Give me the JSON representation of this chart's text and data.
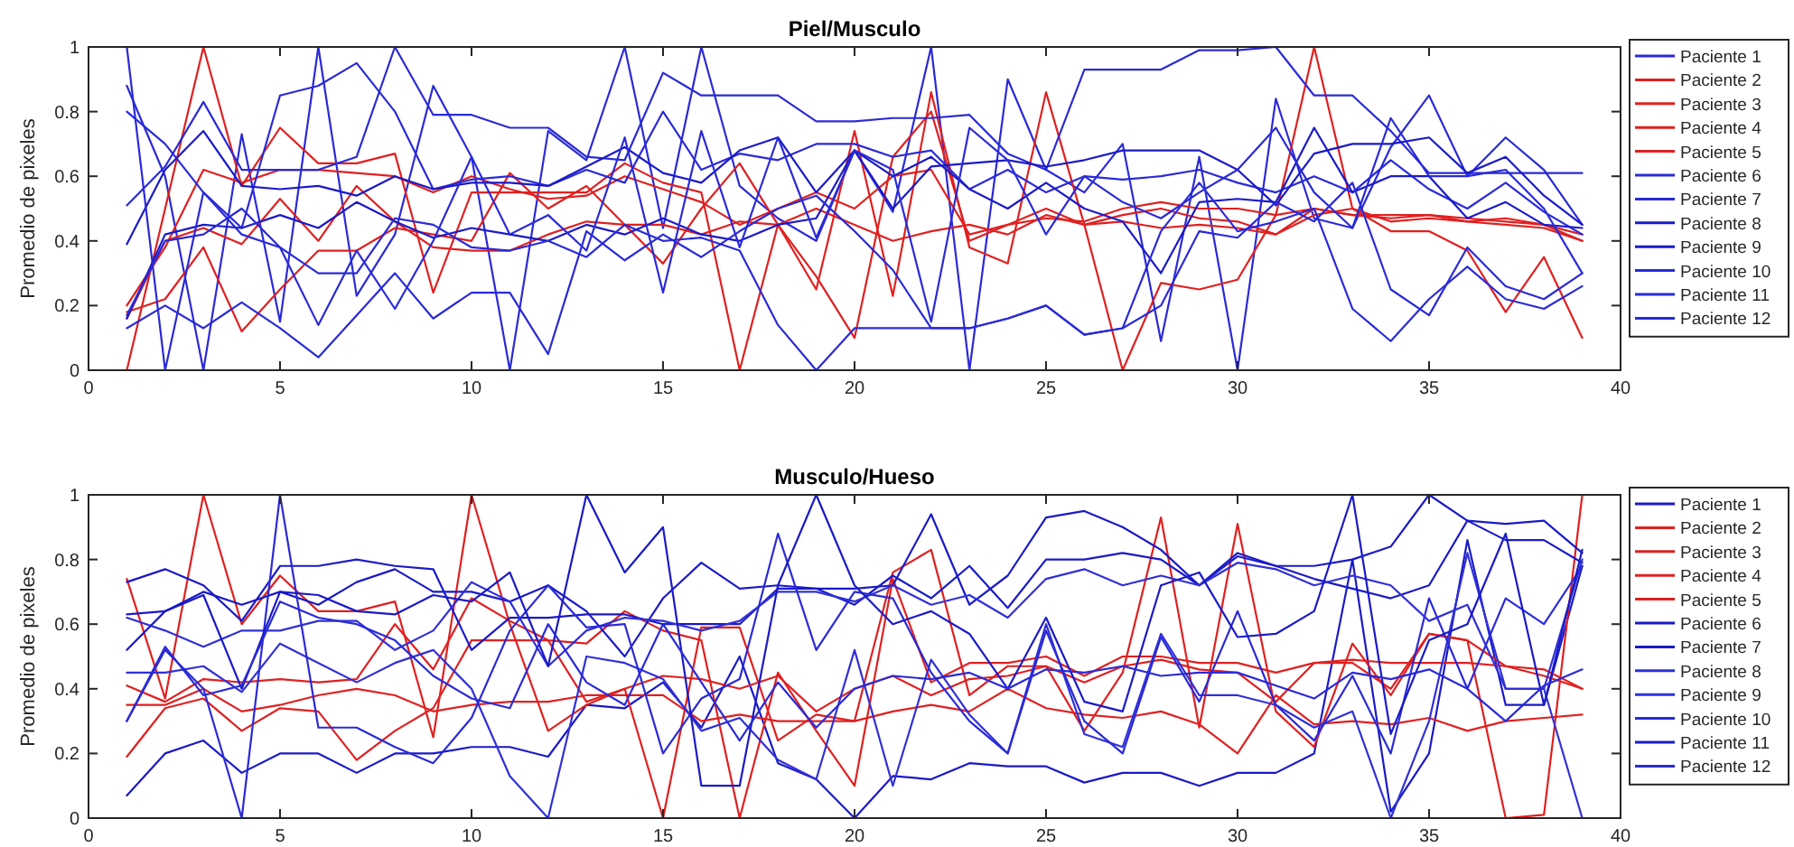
{
  "chart_data": [
    {
      "type": "line",
      "title": "Piel/Musculo",
      "ylabel": "Promedio de pixeles",
      "x": [
        1,
        2,
        3,
        4,
        5,
        6,
        7,
        8,
        9,
        10,
        11,
        12,
        13,
        14,
        15,
        16,
        17,
        18,
        19,
        20,
        21,
        22,
        23,
        24,
        25,
        26,
        27,
        28,
        29,
        30,
        31,
        32,
        33,
        34,
        35,
        36,
        37,
        38,
        39
      ],
      "xlim": [
        0,
        40
      ],
      "xticks": [
        0,
        5,
        10,
        15,
        20,
        25,
        30,
        35,
        40
      ],
      "ylim": [
        0,
        1
      ],
      "yticks": [
        0,
        0.2,
        0.4,
        0.6,
        0.8,
        1
      ],
      "legend": "right",
      "grid": false,
      "series": [
        {
          "name": "Paciente 1",
          "color": "#2a2ad8",
          "values": [
            0.88,
            0.6,
            0.0,
            0.73,
            0.15,
            1.0,
            0.23,
            0.42,
            0.88,
            0.66,
            0.0,
            0.74,
            0.65,
            1.0,
            0.44,
            1.0,
            0.57,
            0.47,
            0.4,
            0.68,
            0.49,
            1.0,
            0.0,
            0.9,
            0.62,
            0.55,
            0.7,
            0.09,
            0.66,
            0.0,
            0.84,
            0.47,
            0.44,
            0.69,
            0.85,
            0.6,
            0.72,
            0.62,
            0.45
          ]
        },
        {
          "name": "Paciente 2",
          "color": "#e02020",
          "values": [
            0.0,
            0.5,
            1.0,
            0.57,
            0.75,
            0.64,
            0.64,
            0.67,
            0.24,
            0.55,
            0.55,
            0.55,
            0.55,
            0.64,
            0.58,
            0.55,
            0.0,
            0.45,
            0.25,
            0.74,
            0.23,
            0.86,
            0.38,
            0.33,
            0.86,
            0.45,
            0.0,
            0.27,
            0.25,
            0.28,
            0.48,
            1.0,
            0.5,
            0.43,
            0.43,
            0.37,
            0.18,
            0.35,
            0.1
          ]
        },
        {
          "name": "Paciente 3",
          "color": "#e02020",
          "values": [
            0.18,
            0.22,
            0.38,
            0.12,
            0.25,
            0.37,
            0.37,
            0.44,
            0.42,
            0.4,
            0.61,
            0.5,
            0.57,
            0.45,
            0.33,
            0.5,
            0.64,
            0.45,
            0.29,
            0.1,
            0.66,
            0.8,
            0.4,
            0.45,
            0.5,
            0.45,
            0.48,
            0.5,
            0.47,
            0.46,
            0.42,
            0.48,
            0.5,
            0.46,
            0.47,
            0.46,
            0.45,
            0.44,
            0.4
          ]
        },
        {
          "name": "Paciente 4",
          "color": "#e02020",
          "values": [
            0.2,
            0.38,
            0.62,
            0.58,
            0.62,
            0.62,
            0.61,
            0.6,
            0.55,
            0.6,
            0.56,
            0.53,
            0.54,
            0.6,
            0.56,
            0.52,
            0.45,
            0.5,
            0.55,
            0.5,
            0.6,
            0.62,
            0.42,
            0.45,
            0.47,
            0.46,
            0.5,
            0.52,
            0.5,
            0.5,
            0.48,
            0.5,
            0.48,
            0.47,
            0.48,
            0.46,
            0.47,
            0.45,
            0.42
          ]
        },
        {
          "name": "Paciente 5",
          "color": "#e02020",
          "values": [
            0.16,
            0.4,
            0.44,
            0.39,
            0.53,
            0.4,
            0.57,
            0.46,
            0.38,
            0.37,
            0.37,
            0.42,
            0.46,
            0.45,
            0.45,
            0.42,
            0.46,
            0.45,
            0.5,
            0.45,
            0.4,
            0.43,
            0.45,
            0.42,
            0.48,
            0.45,
            0.46,
            0.44,
            0.45,
            0.44,
            0.42,
            0.5,
            0.48,
            0.48,
            0.48,
            0.47,
            0.46,
            0.45,
            0.4
          ]
        },
        {
          "name": "Paciente 6",
          "color": "#2a2ad8",
          "values": [
            0.51,
            0.63,
            0.83,
            0.62,
            0.62,
            0.62,
            0.66,
            1.0,
            0.79,
            0.79,
            0.75,
            0.75,
            0.66,
            0.65,
            0.92,
            0.85,
            0.85,
            0.85,
            0.77,
            0.77,
            0.78,
            0.78,
            0.79,
            0.67,
            0.62,
            0.93,
            0.93,
            0.93,
            0.99,
            0.99,
            1.0,
            0.85,
            0.85,
            0.74,
            0.61,
            0.61,
            0.61,
            0.61,
            0.61
          ]
        },
        {
          "name": "Paciente 7",
          "color": "#2a2ad8",
          "values": [
            0.8,
            0.7,
            0.55,
            0.44,
            0.85,
            0.88,
            0.95,
            0.8,
            0.56,
            0.59,
            0.6,
            0.57,
            0.62,
            0.58,
            0.8,
            0.62,
            0.67,
            0.65,
            0.7,
            0.7,
            0.66,
            0.68,
            0.56,
            0.62,
            0.55,
            0.6,
            0.59,
            0.6,
            0.62,
            0.58,
            0.55,
            0.6,
            0.55,
            0.65,
            0.56,
            0.5,
            0.58,
            0.49,
            0.42
          ]
        },
        {
          "name": "Paciente 8",
          "color": "#1a1ac8",
          "values": [
            0.39,
            0.62,
            0.74,
            0.57,
            0.56,
            0.57,
            0.54,
            0.6,
            0.56,
            0.58,
            0.58,
            0.57,
            0.63,
            0.69,
            0.61,
            0.58,
            0.68,
            0.72,
            0.55,
            0.68,
            0.5,
            0.63,
            0.64,
            0.65,
            0.63,
            0.65,
            0.68,
            0.68,
            0.68,
            0.62,
            0.51,
            0.67,
            0.7,
            0.7,
            0.72,
            0.61,
            0.66,
            0.54,
            0.45
          ]
        },
        {
          "name": "Paciente 9",
          "color": "#1a1ac8",
          "values": [
            0.16,
            0.42,
            0.45,
            0.44,
            0.48,
            0.44,
            0.52,
            0.46,
            0.41,
            0.44,
            0.42,
            0.4,
            0.45,
            0.42,
            0.47,
            0.42,
            0.4,
            0.45,
            0.47,
            0.68,
            0.6,
            0.66,
            0.56,
            0.5,
            0.58,
            0.5,
            0.46,
            0.3,
            0.52,
            0.53,
            0.52,
            0.75,
            0.55,
            0.6,
            0.6,
            0.47,
            0.52,
            0.45,
            0.44
          ]
        },
        {
          "name": "Paciente 10",
          "color": "#2a2ad8",
          "values": [
            0.13,
            0.2,
            0.13,
            0.21,
            0.13,
            0.04,
            0.17,
            0.3,
            0.16,
            0.24,
            0.24,
            0.05,
            0.43,
            0.34,
            0.42,
            0.35,
            0.43,
            0.5,
            0.54,
            0.43,
            0.31,
            0.13,
            0.13,
            0.16,
            0.2,
            0.11,
            0.13,
            0.2,
            0.43,
            0.41,
            0.52,
            0.46,
            0.58,
            0.25,
            0.17,
            0.38,
            0.26,
            0.22,
            0.3
          ]
        },
        {
          "name": "Paciente 11",
          "color": "#2a2ad8",
          "values": [
            1.0,
            0.0,
            0.55,
            0.42,
            0.38,
            0.14,
            0.37,
            0.19,
            0.4,
            0.66,
            0.42,
            0.48,
            0.37,
            0.72,
            0.24,
            0.74,
            0.38,
            0.72,
            0.41,
            0.68,
            0.62,
            0.15,
            0.75,
            0.65,
            0.42,
            0.6,
            0.52,
            0.47,
            0.55,
            0.62,
            0.75,
            0.55,
            0.44,
            0.78,
            0.6,
            0.6,
            0.62,
            0.5,
            0.3
          ]
        },
        {
          "name": "Paciente 12",
          "color": "#2a2ad8",
          "values": [
            0.17,
            0.4,
            0.42,
            0.5,
            0.38,
            0.3,
            0.3,
            0.47,
            0.45,
            0.38,
            0.37,
            0.4,
            0.35,
            0.45,
            0.4,
            0.41,
            0.37,
            0.14,
            0.0,
            0.13,
            0.13,
            0.13,
            0.13,
            0.16,
            0.2,
            0.11,
            0.13,
            0.43,
            0.58,
            0.43,
            0.46,
            0.5,
            0.19,
            0.09,
            0.22,
            0.32,
            0.22,
            0.19,
            0.26
          ]
        }
      ]
    },
    {
      "type": "line",
      "title": "Musculo/Hueso",
      "ylabel": "Promedio de pixeles",
      "x": [
        1,
        2,
        3,
        4,
        5,
        6,
        7,
        8,
        9,
        10,
        11,
        12,
        13,
        14,
        15,
        16,
        17,
        18,
        19,
        20,
        21,
        22,
        23,
        24,
        25,
        26,
        27,
        28,
        29,
        30,
        31,
        32,
        33,
        34,
        35,
        36,
        37,
        38,
        39
      ],
      "xlim": [
        0,
        40
      ],
      "xticks": [
        0,
        5,
        10,
        15,
        20,
        25,
        30,
        35,
        40
      ],
      "ylim": [
        0,
        1
      ],
      "yticks": [
        0,
        0.2,
        0.4,
        0.6,
        0.8,
        1
      ],
      "legend": "right",
      "grid": false,
      "series": [
        {
          "name": "Paciente 1",
          "color": "#1a1ac8",
          "values": [
            0.07,
            0.2,
            0.24,
            0.14,
            0.2,
            0.2,
            0.14,
            0.2,
            0.2,
            0.22,
            0.22,
            0.19,
            0.35,
            0.34,
            0.42,
            0.28,
            0.5,
            0.17,
            0.12,
            0.0,
            0.13,
            0.12,
            0.17,
            0.16,
            0.16,
            0.11,
            0.14,
            0.14,
            0.1,
            0.14,
            0.14,
            0.2,
            0.8,
            0.02,
            0.2,
            0.86,
            0.35,
            0.35,
            0.78
          ]
        },
        {
          "name": "Paciente 2",
          "color": "#e02020",
          "values": [
            0.74,
            0.37,
            1.0,
            0.6,
            0.75,
            0.64,
            0.64,
            0.67,
            0.25,
            1.0,
            0.6,
            0.27,
            0.35,
            0.4,
            0.0,
            0.59,
            0.59,
            0.24,
            0.32,
            0.3,
            0.76,
            0.83,
            0.38,
            0.47,
            0.47,
            0.27,
            0.45,
            0.93,
            0.28,
            0.91,
            0.33,
            0.22,
            0.54,
            0.38,
            0.57,
            0.55,
            0.0,
            0.01,
            1.0
          ]
        },
        {
          "name": "Paciente 3",
          "color": "#e02020",
          "values": [
            0.41,
            0.36,
            0.43,
            0.42,
            0.43,
            0.42,
            0.43,
            0.6,
            0.46,
            0.68,
            0.61,
            0.55,
            0.54,
            0.64,
            0.58,
            0.55,
            0.0,
            0.45,
            0.27,
            0.1,
            0.74,
            0.42,
            0.48,
            0.48,
            0.5,
            0.44,
            0.5,
            0.5,
            0.48,
            0.48,
            0.45,
            0.48,
            0.49,
            0.48,
            0.48,
            0.48,
            0.47,
            0.46,
            0.4
          ]
        },
        {
          "name": "Paciente 4",
          "color": "#e02020",
          "values": [
            0.19,
            0.34,
            0.37,
            0.27,
            0.34,
            0.33,
            0.18,
            0.27,
            0.34,
            0.55,
            0.55,
            0.55,
            0.36,
            0.4,
            0.44,
            0.43,
            0.4,
            0.44,
            0.33,
            0.4,
            0.44,
            0.38,
            0.43,
            0.44,
            0.47,
            0.42,
            0.47,
            0.49,
            0.46,
            0.45,
            0.36,
            0.48,
            0.48,
            0.4,
            0.57,
            0.55,
            0.47,
            0.44,
            0.4
          ]
        },
        {
          "name": "Paciente 5",
          "color": "#e02020",
          "values": [
            0.35,
            0.35,
            0.4,
            0.33,
            0.35,
            0.38,
            0.4,
            0.38,
            0.33,
            0.35,
            0.36,
            0.36,
            0.38,
            0.38,
            0.38,
            0.3,
            0.32,
            0.3,
            0.3,
            0.3,
            0.33,
            0.35,
            0.33,
            0.4,
            0.34,
            0.32,
            0.31,
            0.33,
            0.29,
            0.2,
            0.38,
            0.29,
            0.3,
            0.29,
            0.31,
            0.27,
            0.3,
            0.31,
            0.32
          ]
        },
        {
          "name": "Paciente 6",
          "color": "#1a1ac8",
          "values": [
            0.73,
            0.77,
            0.72,
            0.61,
            0.78,
            0.78,
            0.8,
            0.78,
            0.77,
            0.52,
            0.62,
            0.62,
            0.63,
            0.63,
            0.6,
            0.6,
            0.6,
            0.71,
            0.71,
            0.71,
            0.72,
            0.94,
            0.66,
            0.75,
            0.93,
            0.95,
            0.9,
            0.83,
            0.72,
            0.82,
            0.78,
            0.74,
            0.71,
            0.68,
            0.72,
            0.92,
            0.91,
            0.92,
            0.82
          ]
        },
        {
          "name": "Paciente 7",
          "color": "#1a1ac8",
          "values": [
            0.63,
            0.64,
            0.7,
            0.66,
            0.7,
            0.66,
            0.73,
            0.77,
            0.7,
            0.7,
            0.67,
            0.72,
            0.64,
            0.5,
            0.68,
            0.79,
            0.71,
            0.72,
            0.71,
            0.66,
            0.75,
            0.68,
            0.78,
            0.65,
            0.8,
            0.8,
            0.82,
            0.8,
            0.72,
            0.81,
            0.78,
            0.78,
            0.8,
            0.84,
            1.0,
            0.92,
            0.86,
            0.86,
            0.79
          ]
        },
        {
          "name": "Paciente 8",
          "color": "#3030d8",
          "values": [
            0.62,
            0.58,
            0.53,
            0.58,
            0.58,
            0.61,
            0.61,
            0.52,
            0.58,
            0.73,
            0.67,
            0.47,
            0.58,
            0.62,
            0.61,
            0.58,
            0.61,
            0.7,
            0.7,
            0.67,
            0.72,
            0.66,
            0.69,
            0.62,
            0.74,
            0.77,
            0.72,
            0.75,
            0.72,
            0.79,
            0.77,
            0.72,
            0.75,
            0.72,
            0.61,
            0.66,
            0.4,
            0.4,
            0.8
          ]
        },
        {
          "name": "Paciente 9",
          "color": "#3030d8",
          "values": [
            0.45,
            0.45,
            0.47,
            0.39,
            0.54,
            0.48,
            0.42,
            0.48,
            0.52,
            0.4,
            0.13,
            0.0,
            0.5,
            0.48,
            0.43,
            0.27,
            0.31,
            0.18,
            0.12,
            0.52,
            0.1,
            0.49,
            0.32,
            0.2,
            0.6,
            0.26,
            0.22,
            0.57,
            0.38,
            0.38,
            0.35,
            0.28,
            0.33,
            0.0,
            0.3,
            0.82,
            0.4,
            0.4,
            0.0
          ]
        },
        {
          "name": "Paciente 10",
          "color": "#2a2ad8",
          "values": [
            0.3,
            0.52,
            0.4,
            0.0,
            1.0,
            0.28,
            0.28,
            0.22,
            0.17,
            0.31,
            0.58,
            0.72,
            0.59,
            0.6,
            0.2,
            0.37,
            0.43,
            0.88,
            0.52,
            0.7,
            0.68,
            0.45,
            0.3,
            0.2,
            0.58,
            0.3,
            0.2,
            0.56,
            0.36,
            0.64,
            0.35,
            0.24,
            0.44,
            0.2,
            0.68,
            0.4,
            0.68,
            0.6,
            0.78
          ]
        },
        {
          "name": "Paciente 11",
          "color": "#1a1ac8",
          "values": [
            0.52,
            0.64,
            0.69,
            0.4,
            0.7,
            0.69,
            0.64,
            0.63,
            0.69,
            0.67,
            0.76,
            0.47,
            1.0,
            0.76,
            0.9,
            0.1,
            0.1,
            0.72,
            1.0,
            0.72,
            0.6,
            0.64,
            0.57,
            0.4,
            0.62,
            0.36,
            0.33,
            0.72,
            0.76,
            0.56,
            0.57,
            0.64,
            1.0,
            0.26,
            0.55,
            0.6,
            0.88,
            0.35,
            0.83
          ]
        },
        {
          "name": "Paciente 12",
          "color": "#2a2ad8",
          "values": [
            0.3,
            0.53,
            0.38,
            0.41,
            0.67,
            0.62,
            0.6,
            0.55,
            0.44,
            0.37,
            0.34,
            0.6,
            0.42,
            0.35,
            0.6,
            0.42,
            0.24,
            0.42,
            0.28,
            0.4,
            0.44,
            0.43,
            0.45,
            0.4,
            0.46,
            0.45,
            0.47,
            0.44,
            0.45,
            0.45,
            0.41,
            0.37,
            0.45,
            0.43,
            0.46,
            0.4,
            0.3,
            0.41,
            0.46
          ]
        }
      ]
    }
  ]
}
